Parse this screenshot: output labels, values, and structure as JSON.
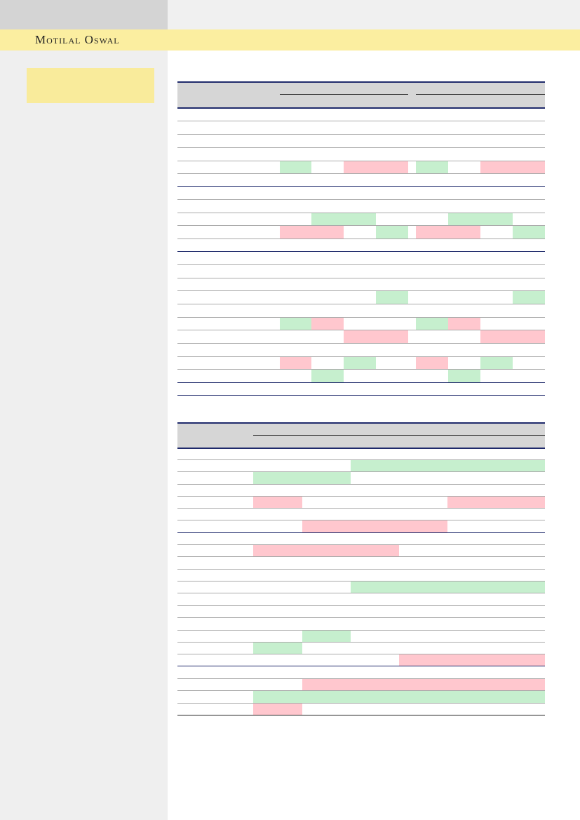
{
  "header": {
    "brand": "Motilal Oswal"
  }
}
